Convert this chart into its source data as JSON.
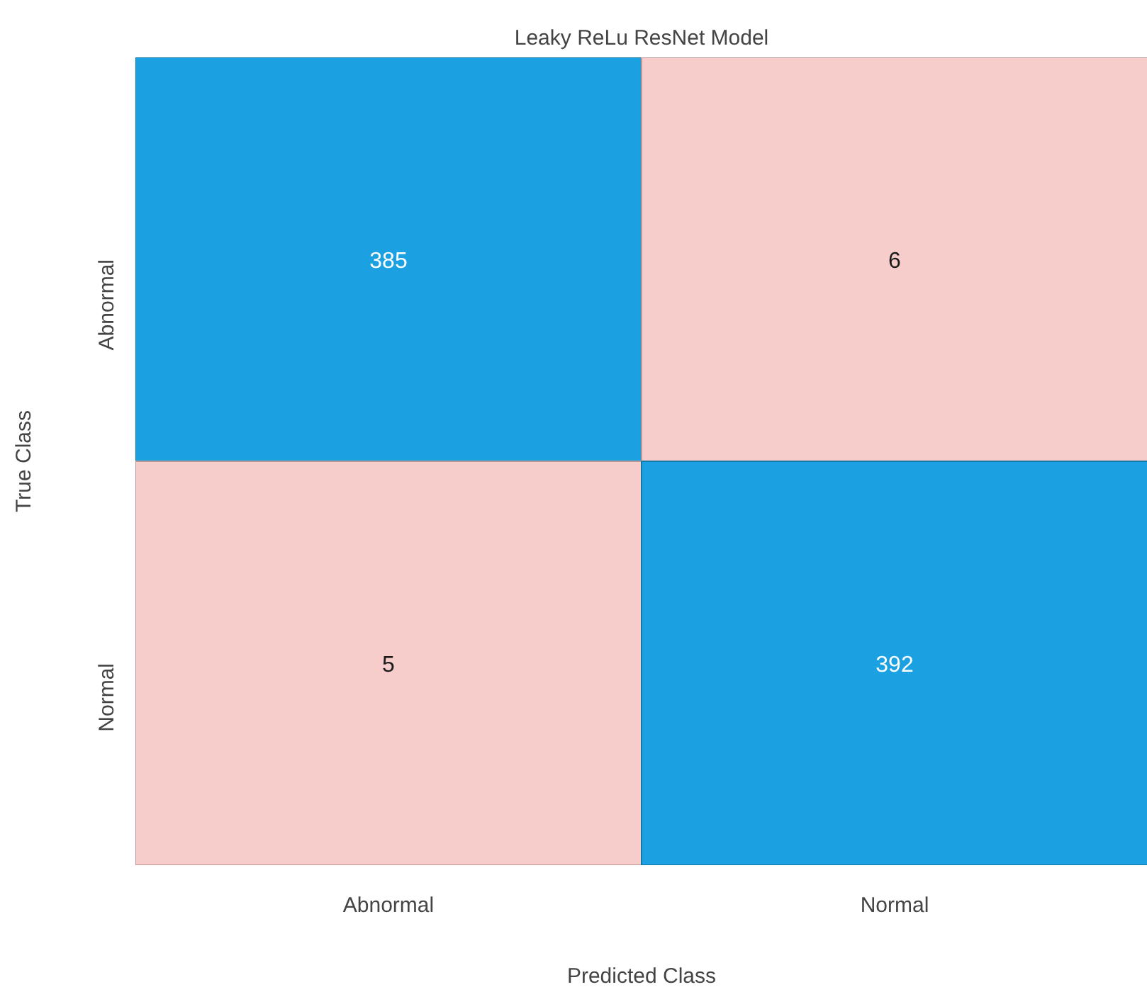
{
  "chart_data": {
    "type": "heatmap",
    "title": "Leaky ReLu ResNet Model",
    "xlabel": "Predicted Class",
    "ylabel": "True Class",
    "categories": [
      "Abnormal",
      "Normal"
    ],
    "y_categories": [
      "Abnormal",
      "Normal"
    ],
    "cells": [
      [
        385,
        6
      ],
      [
        5,
        392
      ]
    ],
    "colors": [
      [
        "#1ba1e2",
        "#f6cdcb"
      ],
      [
        "#f6cdcb",
        "#1ba1e2"
      ]
    ],
    "data_labels": true
  }
}
